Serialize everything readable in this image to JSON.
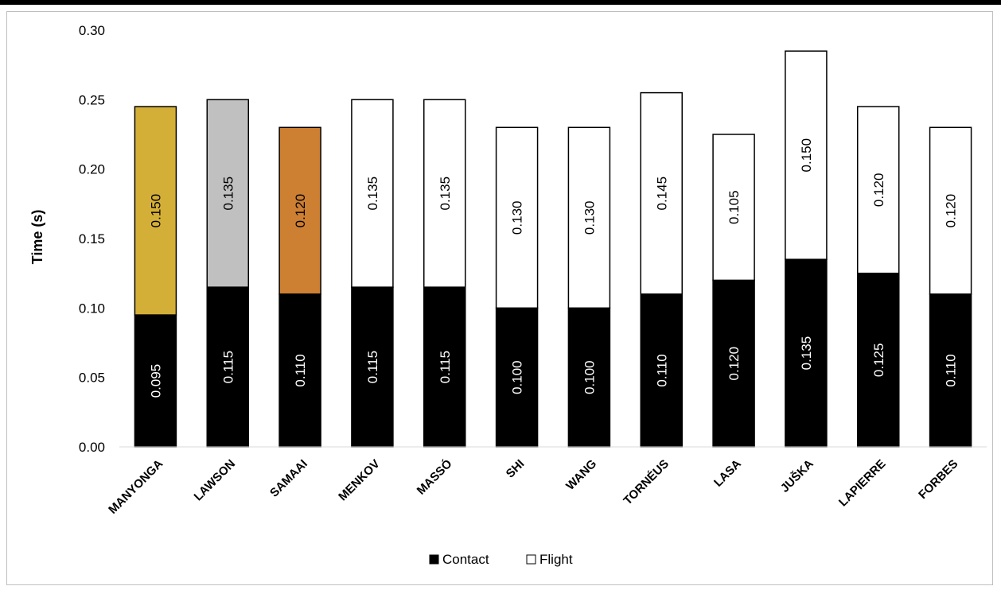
{
  "chart_data": {
    "type": "bar",
    "stacked": true,
    "categories": [
      "MANYONGA",
      "LAWSON",
      "SAMAAI",
      "MENKOV",
      "MASSÓ",
      "SHI",
      "WANG",
      "TORNÉUS",
      "LASA",
      "JUŠKA",
      "LAPIERRE",
      "FORBES"
    ],
    "series": [
      {
        "name": "Contact",
        "color": "#000000",
        "values": [
          0.095,
          0.115,
          0.11,
          0.115,
          0.115,
          0.1,
          0.1,
          0.11,
          0.12,
          0.135,
          0.125,
          0.11
        ],
        "labels": [
          "0.095",
          "0.115",
          "0.110",
          "0.115",
          "0.115",
          "0.100",
          "0.100",
          "0.110",
          "0.120",
          "0.135",
          "0.125",
          "0.110"
        ]
      },
      {
        "name": "Flight",
        "color": "#ffffff",
        "point_colors": [
          "#d4af37",
          "#c0c0c0",
          "#cd7f32",
          "#ffffff",
          "#ffffff",
          "#ffffff",
          "#ffffff",
          "#ffffff",
          "#ffffff",
          "#ffffff",
          "#ffffff",
          "#ffffff"
        ],
        "values": [
          0.15,
          0.135,
          0.12,
          0.135,
          0.135,
          0.13,
          0.13,
          0.145,
          0.105,
          0.15,
          0.12,
          0.12
        ],
        "labels": [
          "0.150",
          "0.135",
          "0.120",
          "0.135",
          "0.135",
          "0.130",
          "0.130",
          "0.145",
          "0.105",
          "0.150",
          "0.120",
          "0.120"
        ]
      }
    ],
    "title": "",
    "xlabel": "",
    "ylabel": "Time (s)",
    "ylim": [
      0,
      0.3
    ],
    "yticks": [
      "0.00",
      "0.05",
      "0.10",
      "0.15",
      "0.20",
      "0.25",
      "0.30"
    ],
    "grid": false,
    "legend_position": "bottom"
  }
}
